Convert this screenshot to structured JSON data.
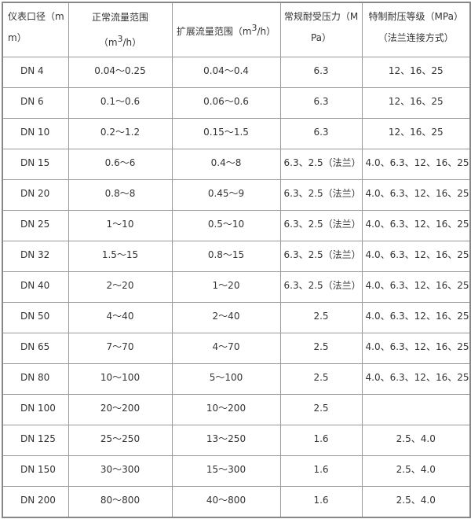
{
  "table": {
    "headers": {
      "diameter": "仪表口径（mm）",
      "normal_flow_prefix": "正常流量范围（m",
      "normal_flow_sup": "3",
      "normal_flow_suffix": "/h）",
      "extended_flow_prefix": "扩展流量范围（m",
      "extended_flow_sup": "3",
      "extended_flow_suffix": "/h）",
      "normal_pressure": "常规耐受压力（MPa）",
      "special_pressure": "特制耐压等级（MPa）（法兰连接方式）"
    },
    "rows": [
      [
        "DN 4",
        "0.04～0.25",
        "0.04～0.4",
        "6.3",
        "12、16、25"
      ],
      [
        "DN 6",
        "0.1～0.6",
        "0.06～0.6",
        "6.3",
        "12、16、25"
      ],
      [
        "DN 10",
        "0.2～1.2",
        "0.15～1.5",
        "6.3",
        "12、16、25"
      ],
      [
        "DN 15",
        "0.6～6",
        "0.4～8",
        "6.3、2.5（法兰）",
        "4.0、6.3、12、16、25"
      ],
      [
        "DN 20",
        "0.8～8",
        "0.45～9",
        "6.3、2.5（法兰）",
        "4.0、6.3、12、16、25"
      ],
      [
        "DN 25",
        "1～10",
        "0.5～10",
        "6.3、2.5（法兰）",
        "4.0、6.3、12、16、25"
      ],
      [
        "DN 32",
        "1.5～15",
        "0.8～15",
        "6.3、2.5（法兰）",
        "4.0、6.3、12、16、25"
      ],
      [
        "DN 40",
        "2～20",
        "1～20",
        "6.3、2.5（法兰）",
        "4.0、6.3、12、16、25"
      ],
      [
        "DN 50",
        "4～40",
        "2～40",
        "2.5",
        "4.0、6.3、12、16、25"
      ],
      [
        "DN 65",
        "7～70",
        "4～70",
        "2.5",
        "4.0、6.3、12、16、25"
      ],
      [
        "DN 80",
        "10～100",
        "5～100",
        "2.5",
        "4.0、6.3、12、16、25"
      ],
      [
        "DN 100",
        "20～200",
        "10～200",
        "2.5",
        ""
      ],
      [
        "DN 125",
        "25～250",
        "13～250",
        "1.6",
        "2.5、4.0"
      ],
      [
        "DN 150",
        "30～300",
        "15～300",
        "1.6",
        "2.5、4.0"
      ],
      [
        "DN 200",
        "80～800",
        "40～800",
        "1.6",
        "2.5、4.0"
      ]
    ]
  }
}
